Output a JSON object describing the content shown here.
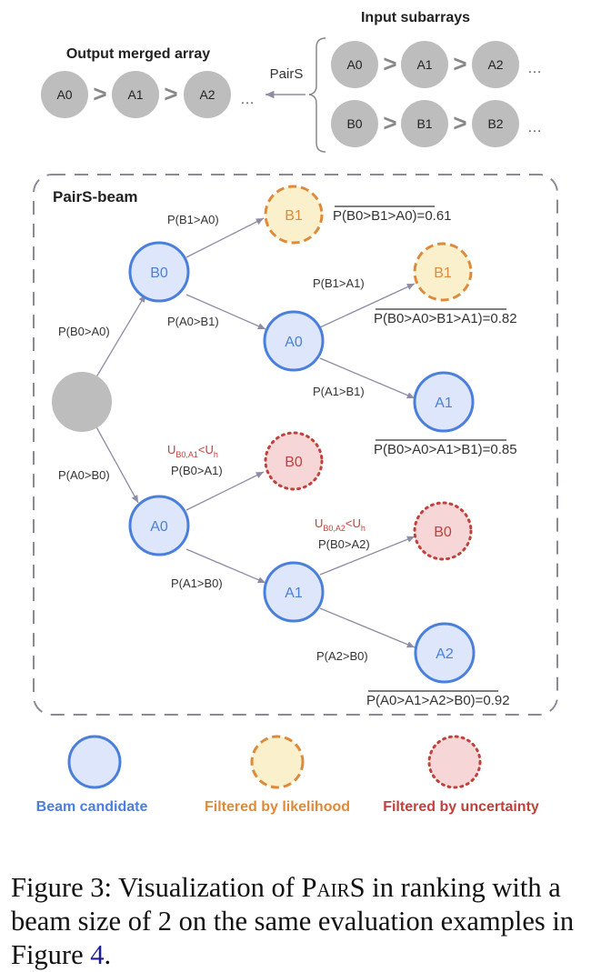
{
  "top": {
    "input_title": "Input subarrays",
    "output_title": "Output merged array",
    "arrow_label": "PairS",
    "row_a": [
      "A0",
      "A1",
      "A2"
    ],
    "row_b": [
      "B0",
      "B1",
      "B2"
    ],
    "output": [
      "A0",
      "A1",
      "A2"
    ],
    "gt": ">",
    "ellipsis": "…"
  },
  "beam": {
    "title": "PairS-beam",
    "nodes": {
      "b0": "B0",
      "b1_top": "B1",
      "a0_upper": "A0",
      "b1_right": "B1",
      "a1_right": "A1",
      "a0_lower": "A0",
      "b0_mid": "B0",
      "a1_lower": "A1",
      "b0_lower": "B0",
      "a2": "A2"
    },
    "edges": {
      "root_b0": "P(B0>A0)",
      "root_a0": "P(A0>B0)",
      "b0_b1": "P(B1>A0)",
      "b0_a0": "P(A0>B1)",
      "a0_b1": "P(B1>A1)",
      "a0_a1": "P(A1>B1)",
      "a0_b0": "P(B0>A1)",
      "a0_a1_lower": "P(A1>B0)",
      "a1_b0": "P(B0>A2)",
      "a1_a2": "P(A2>B0)"
    },
    "scores": {
      "s1": "P(B0>B1>A0)=0.61",
      "s2": "P(B0>A0>B1>A1)=0.82",
      "s3": "P(B0>A0>A1>B1)=0.85",
      "s4": "P(A0>A1>A2>B0)=0.92"
    },
    "uncertainty": {
      "u1": {
        "U": "U",
        "sub": "B0,A1",
        "lt": "<U",
        "h": "h"
      },
      "u2": {
        "U": "U",
        "sub": "B0,A2",
        "lt": "<U",
        "h": "h"
      }
    }
  },
  "legend": {
    "beam": "Beam candidate",
    "likelihood": "Filtered by likelihood",
    "uncertainty": "Filtered by uncertainty"
  },
  "colors": {
    "gray_node": "#bdbdbd",
    "beam_fill": "#dde6fb",
    "beam_stroke": "#4a7fdc",
    "likelihood_fill": "#fbf0cc",
    "likelihood_stroke": "#de8a3a",
    "uncertainty_fill": "#f6d6d6",
    "uncertainty_stroke": "#c0413b",
    "edge": "#8c8ca4"
  },
  "caption": {
    "prefix": "Figure 3: Visualization of ",
    "name": "PairS",
    "mid": " in ranking with a beam size of 2 on the same evaluation examples in Figure ",
    "ref": "4",
    "end": "."
  }
}
